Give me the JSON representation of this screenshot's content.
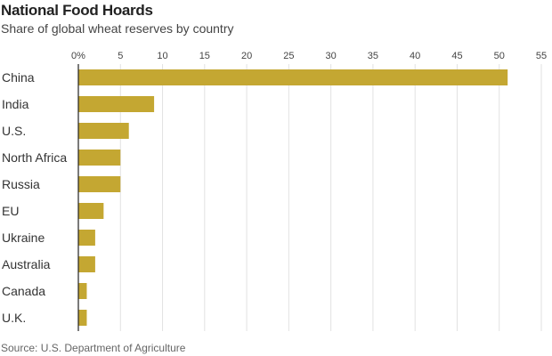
{
  "chart_data": {
    "type": "bar",
    "orientation": "horizontal",
    "title": "National Food Hoards",
    "subtitle": "Share of global wheat reserves by country",
    "source": "Source: U.S. Department of Agriculture",
    "categories": [
      "China",
      "India",
      "U.S.",
      "North Africa",
      "Russia",
      "EU",
      "Ukraine",
      "Australia",
      "Canada",
      "U.K."
    ],
    "values": [
      51,
      9,
      6,
      5,
      5,
      3,
      2,
      2,
      1,
      1
    ],
    "xlim": [
      0,
      55
    ],
    "xticks": [
      0,
      5,
      10,
      15,
      20,
      25,
      30,
      35,
      40,
      45,
      50,
      55
    ],
    "xtick_labels": [
      "0%",
      "5",
      "10",
      "15",
      "20",
      "25",
      "30",
      "35",
      "40",
      "45",
      "50",
      "55"
    ],
    "xlabel": "",
    "ylabel": "",
    "grid": true,
    "bar_color": "#C4A732"
  }
}
